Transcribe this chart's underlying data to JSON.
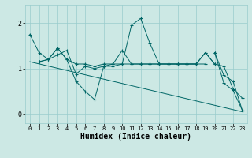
{
  "bg_color": "#cce8e4",
  "grid_color": "#99cccc",
  "line_color": "#006666",
  "marker_color": "#006666",
  "xlabel": "Humidex (Indice chaleur)",
  "xlabel_fontsize": 7,
  "tick_fontsize": 6,
  "ylim": [
    -0.2,
    2.4
  ],
  "xlim": [
    -0.5,
    23.5
  ],
  "yticks": [
    0,
    1,
    2
  ],
  "xticks": [
    0,
    1,
    2,
    3,
    4,
    5,
    6,
    7,
    8,
    9,
    10,
    11,
    12,
    13,
    14,
    15,
    16,
    17,
    18,
    19,
    20,
    21,
    22,
    23
  ],
  "series": [
    [
      1.75,
      1.35,
      1.2,
      1.3,
      1.4,
      0.88,
      1.05,
      1.0,
      1.05,
      1.05,
      1.1,
      1.95,
      2.1,
      1.55,
      1.1,
      1.1,
      1.1,
      1.1,
      1.1,
      1.35,
      1.1,
      1.05,
      0.55,
      0.35
    ],
    [
      null,
      1.15,
      1.2,
      1.45,
      1.2,
      0.72,
      0.5,
      0.32,
      1.05,
      1.1,
      1.4,
      1.1,
      1.1,
      1.1,
      1.1,
      1.1,
      1.1,
      1.1,
      1.1,
      1.35,
      1.1,
      null,
      null,
      null
    ],
    [
      null,
      1.15,
      1.2,
      1.45,
      1.2,
      1.1,
      1.1,
      1.05,
      1.1,
      1.1,
      1.1,
      1.1,
      1.1,
      1.1,
      1.1,
      1.1,
      1.1,
      1.1,
      1.1,
      1.1,
      null,
      null,
      null,
      null
    ],
    [
      null,
      null,
      null,
      null,
      null,
      null,
      null,
      null,
      null,
      null,
      null,
      null,
      null,
      null,
      null,
      null,
      null,
      null,
      null,
      null,
      1.35,
      0.68,
      0.52,
      0.08
    ],
    [
      null,
      null,
      null,
      null,
      null,
      null,
      null,
      null,
      null,
      null,
      null,
      null,
      null,
      null,
      null,
      null,
      null,
      null,
      null,
      null,
      1.35,
      0.85,
      0.72,
      0.08
    ]
  ],
  "diagonal_line": {
    "x": [
      0,
      23
    ],
    "y": [
      1.15,
      0.05
    ]
  }
}
